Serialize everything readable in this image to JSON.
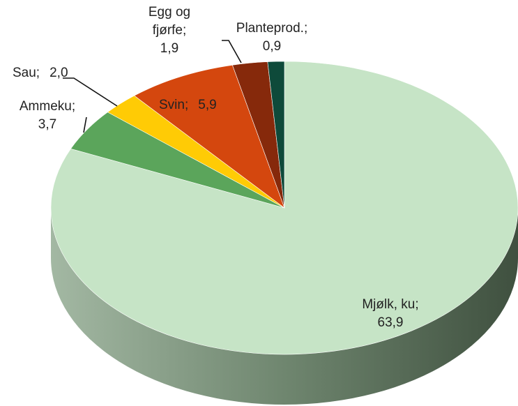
{
  "chart_data": {
    "type": "pie",
    "categories": [
      "Mjølk, ku;",
      "Ammeku;",
      "Sau;",
      "Svin;",
      "Egg og fjørfe;",
      "Planteprod.;"
    ],
    "values": [
      63.9,
      3.7,
      2.0,
      5.9,
      1.9,
      0.9
    ],
    "value_labels": [
      "63,9",
      "3,7",
      "2,0",
      "5,9",
      "1,9",
      "0,9"
    ],
    "colors": [
      "#c6e4c6",
      "#5ba55b",
      "#ffcb05",
      "#d4470e",
      "#86290b",
      "#0e4a3a"
    ],
    "three_d": true
  }
}
